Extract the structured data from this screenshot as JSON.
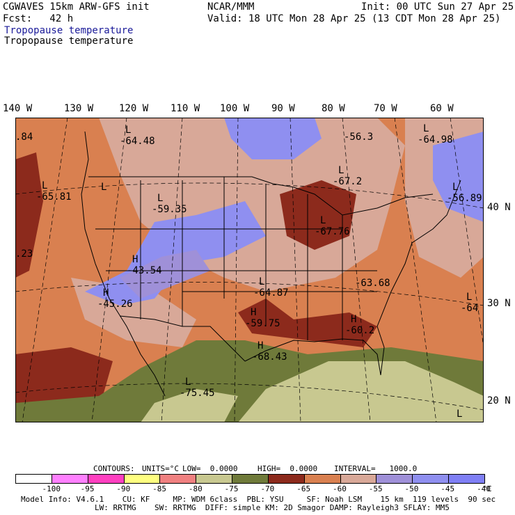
{
  "header": {
    "model_title": "CGWAVES 15km ARW-GFS init",
    "org": "NCAR/MMM",
    "init": "Init: 00 UTC Sun 27 Apr 25",
    "fcst": "Fcst:   42 h",
    "valid": "Valid: 18 UTC Mon 28 Apr 25 (13 CDT Mon 28 Apr 25)",
    "field_title_blue": "Tropopause temperature",
    "field_title_black": "Tropopause temperature"
  },
  "longitude_labels": [
    "140 W",
    "130 W",
    "120 W",
    "110 W",
    "100 W",
    "90 W",
    "80 W",
    "70 W",
    "60 W"
  ],
  "latitude_labels": [
    "40 N",
    "30 N",
    "20 N"
  ],
  "map_labels": [
    {
      "letter": "",
      "value": ".84"
    },
    {
      "letter": "",
      "value": "-56.3"
    },
    {
      "letter": "L",
      "value": "-64.98"
    },
    {
      "letter": "L",
      "value": "-64.48"
    },
    {
      "letter": "L",
      "value": "-67.2"
    },
    {
      "letter": "L",
      "value": "-65.81"
    },
    {
      "letter": "L",
      "value": ""
    },
    {
      "letter": "L",
      "value": "-56.89"
    },
    {
      "letter": "L",
      "value": "-59.35"
    },
    {
      "letter": "L",
      "value": "-67.76"
    },
    {
      "letter": "",
      "value": ".23"
    },
    {
      "letter": "H",
      "value": "-43.54"
    },
    {
      "letter": "",
      "value": "-63.68"
    },
    {
      "letter": "H",
      "value": "-45.26"
    },
    {
      "letter": "L",
      "value": "-64.87"
    },
    {
      "letter": "L",
      "value": "-64"
    },
    {
      "letter": "H",
      "value": "-59.75"
    },
    {
      "letter": "H",
      "value": "-60.2"
    },
    {
      "letter": "H",
      "value": "-68.43"
    },
    {
      "letter": "L",
      "value": "-75.45"
    },
    {
      "letter": "L",
      "value": ""
    }
  ],
  "contours": {
    "label": "CONTOURS:",
    "units": "UNITS=°C",
    "low": "LOW=  0.0000",
    "high": "HIGH=  0.0000",
    "interval": "INTERVAL=   1000.0"
  },
  "colorbar": {
    "colors": [
      "#ffffff",
      "#ff80ff",
      "#ff40c0",
      "#ffff80",
      "#f08080",
      "#c8c890",
      "#6f7a3a",
      "#8c2a1c",
      "#d98050",
      "#d8a898",
      "#9f90d8",
      "#8f8ff0",
      "#7f7ff5"
    ],
    "ticks": [
      "-100",
      "-95",
      "-90",
      "-85",
      "-80",
      "-75",
      "-70",
      "-65",
      "-60",
      "-55",
      "-50",
      "-45",
      "-40",
      "°C"
    ]
  },
  "footer": {
    "line1": "Model Info: V4.6.1    CU: KF     MP: WDM 6class  PBL: YSU     SF: Noah LSM    15 km  119 levels  90 sec",
    "line2": "                LW: RRTMG    SW: RRTMG  DIFF: simple KM: 2D Smagor DAMP: Rayleigh3 SFLAY: MM5"
  }
}
